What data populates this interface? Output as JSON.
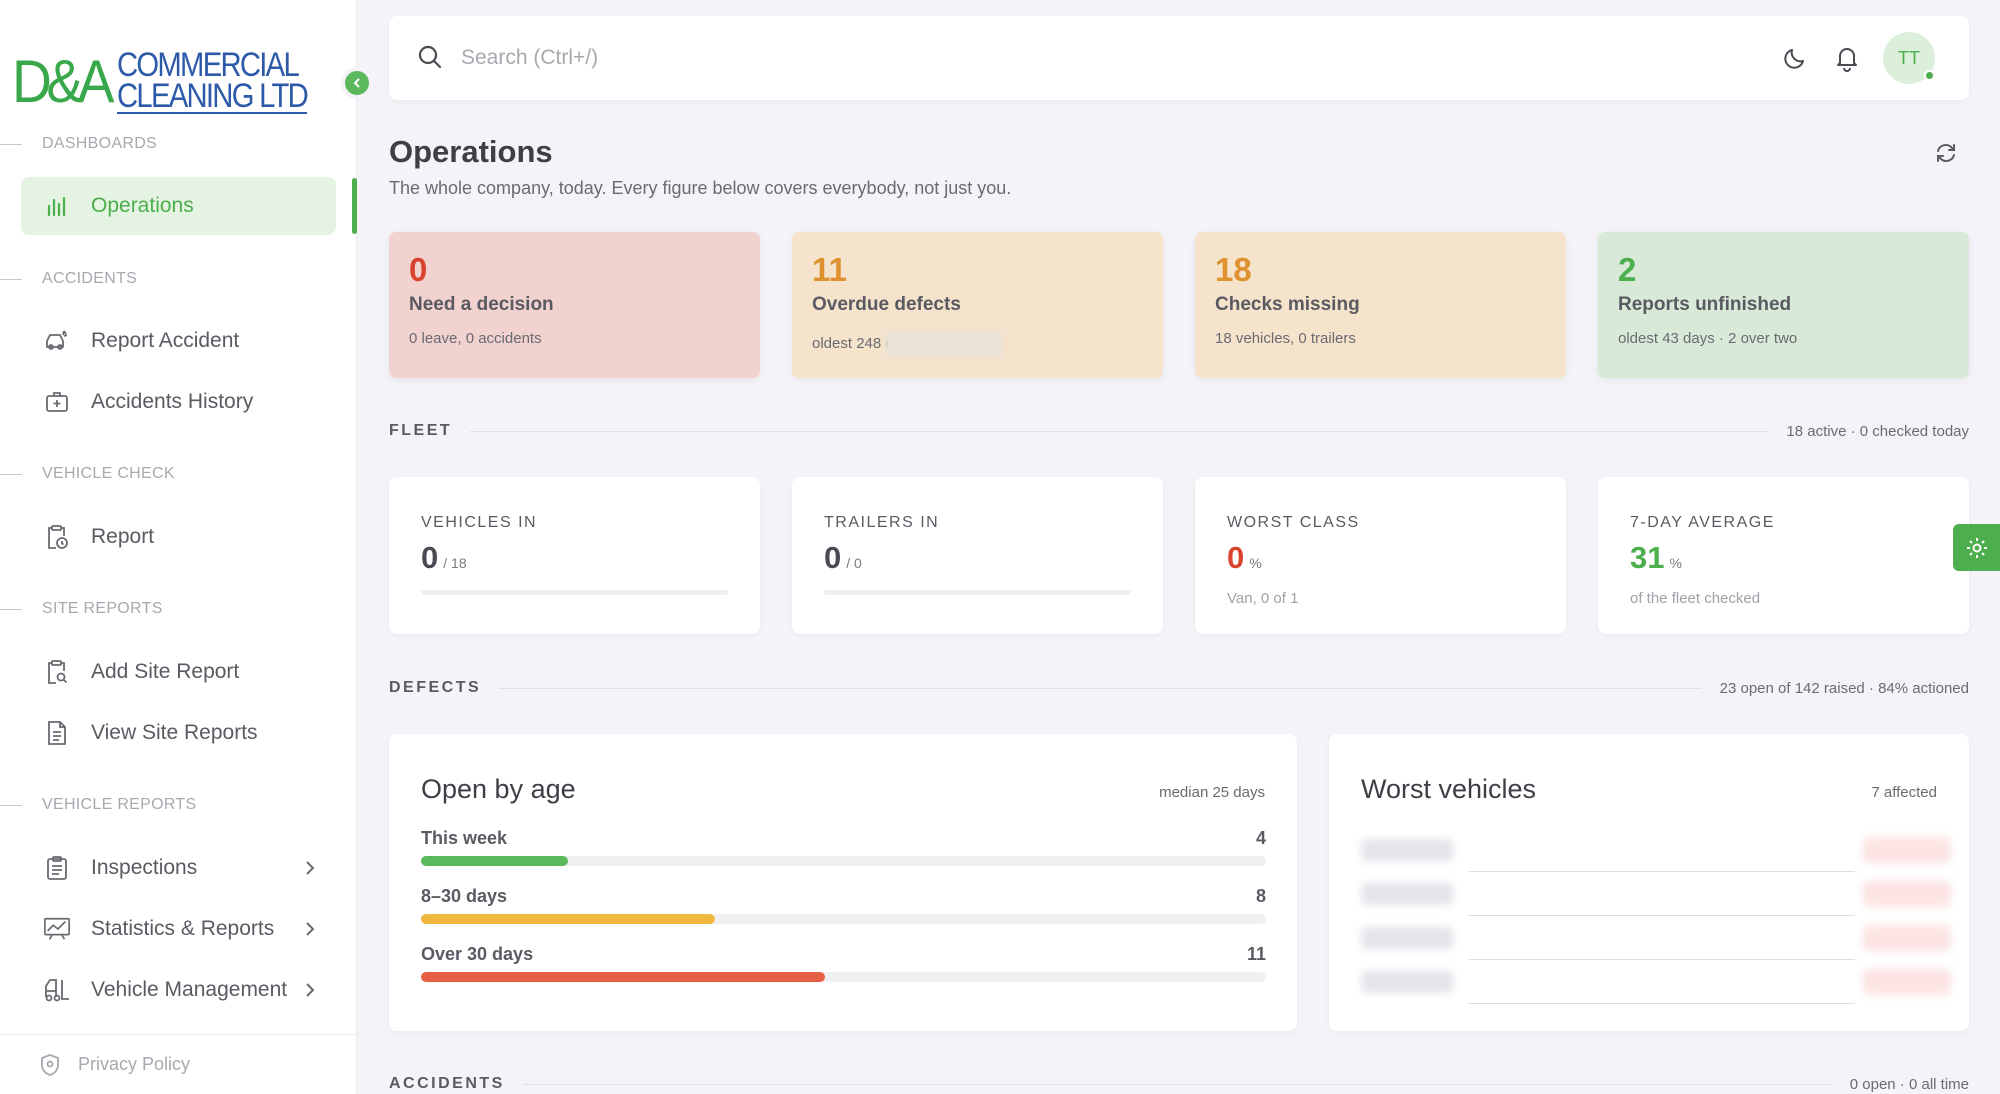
{
  "brand": {
    "mark": "D&A",
    "line1": "COMMERCIAL",
    "line2": "CLEANING LTD"
  },
  "sidebar": {
    "sections": [
      {
        "label": "DASHBOARDS"
      },
      {
        "label": "ACCIDENTS"
      },
      {
        "label": "VEHICLE CHECK"
      },
      {
        "label": "SITE REPORTS"
      },
      {
        "label": "VEHICLE REPORTS"
      }
    ],
    "items": [
      {
        "label": "Operations",
        "icon": "bar-chart-icon",
        "active": true
      },
      {
        "label": "Report Accident",
        "icon": "car-crash-icon"
      },
      {
        "label": "Accidents History",
        "icon": "first-aid-icon"
      },
      {
        "label": "Report",
        "icon": "clipboard-clock-icon"
      },
      {
        "label": "Add Site Report",
        "icon": "clipboard-search-icon"
      },
      {
        "label": "View Site Reports",
        "icon": "document-icon"
      },
      {
        "label": "Inspections",
        "icon": "clipboard-list-icon"
      },
      {
        "label": "Statistics & Reports",
        "icon": "presentation-chart-icon"
      },
      {
        "label": "Vehicle Management",
        "icon": "forklift-icon"
      }
    ],
    "footer": {
      "label": "Privacy Policy",
      "icon": "shield-icon"
    }
  },
  "topbar": {
    "search_placeholder": "Search (Ctrl+/)",
    "avatar_initials": "TT"
  },
  "page": {
    "title": "Operations",
    "subtitle": "The whole company, today. Every figure below covers everybody, not just you."
  },
  "stats": [
    {
      "value": "0",
      "title": "Need a decision",
      "sub": "0 leave, 0 accidents",
      "tone": "#d9442f"
    },
    {
      "value": "11",
      "title": "Overdue defects",
      "sub": "oldest 248 c",
      "tone": "#e0912f"
    },
    {
      "value": "18",
      "title": "Checks missing",
      "sub": "18 vehicles, 0 trailers",
      "tone": "#e0912f"
    },
    {
      "value": "2",
      "title": "Reports unfinished",
      "sub": "oldest 43 days · 2 over two",
      "tone": "#4cae4c"
    }
  ],
  "fleet": {
    "heading": "FLEET",
    "summary": "18 active · 0 checked today",
    "cards": [
      {
        "label": "VEHICLES IN",
        "value": "0",
        "suffix": "/ 18",
        "progress": 0
      },
      {
        "label": "TRAILERS IN",
        "value": "0",
        "suffix": "/ 0",
        "progress": 0
      },
      {
        "label": "WORST CLASS",
        "value": "0",
        "suffix": "%",
        "note": "Van, 0 of 1",
        "color": "#d9442f"
      },
      {
        "label": "7-DAY AVERAGE",
        "value": "31",
        "suffix": "%",
        "note": "of the fleet checked",
        "color": "#4cae4c"
      }
    ]
  },
  "defects": {
    "heading": "DEFECTS",
    "summary": "23 open of 142 raised · 84% actioned",
    "by_age": {
      "title": "Open by age",
      "median": "median 25 days",
      "rows": [
        {
          "label": "This week",
          "count": "4",
          "fraction": 0.174,
          "color": "#5cb85c"
        },
        {
          "label": "8–30 days",
          "count": "8",
          "fraction": 0.348,
          "color": "#f0b93e"
        },
        {
          "label": "Over 30 days",
          "count": "11",
          "fraction": 0.478,
          "color": "#e55f45"
        }
      ]
    },
    "worst": {
      "title": "Worst vehicles",
      "affected": "7 affected"
    }
  },
  "accidents": {
    "heading": "ACCIDENTS",
    "summary": "0 open · 0 all time"
  }
}
